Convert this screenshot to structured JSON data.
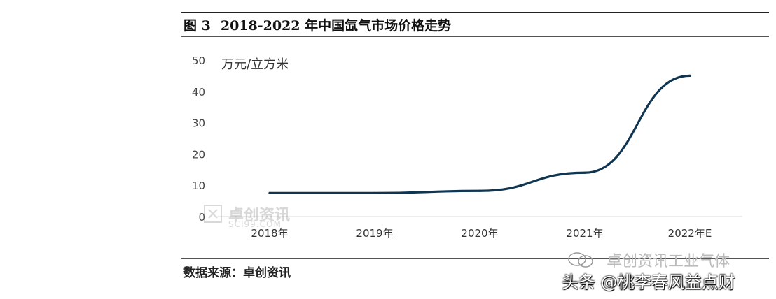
{
  "figure": {
    "number": "图 3",
    "title": "2018-2022 年中国氙气市场价格走势",
    "source": "数据来源：卓创资讯"
  },
  "watermark": {
    "logo_cn": "卓创资讯",
    "logo_en": "SCI99.COM",
    "wechat": "卓创资讯工业气体",
    "toutiao": "头条 @桃李春风益点财"
  },
  "chart_data": {
    "type": "line",
    "categories": [
      "2018年",
      "2019年",
      "2020年",
      "2021年",
      "2022年E"
    ],
    "series": [
      {
        "values": [
          7.5,
          7.5,
          8.2,
          14,
          45
        ],
        "color": "#0f3550"
      }
    ],
    "ylabel": "万元/立方米",
    "ylim": [
      0,
      50
    ],
    "yticks": [
      0,
      10,
      20,
      30,
      40,
      50
    ],
    "grid": false,
    "legend": "none"
  }
}
